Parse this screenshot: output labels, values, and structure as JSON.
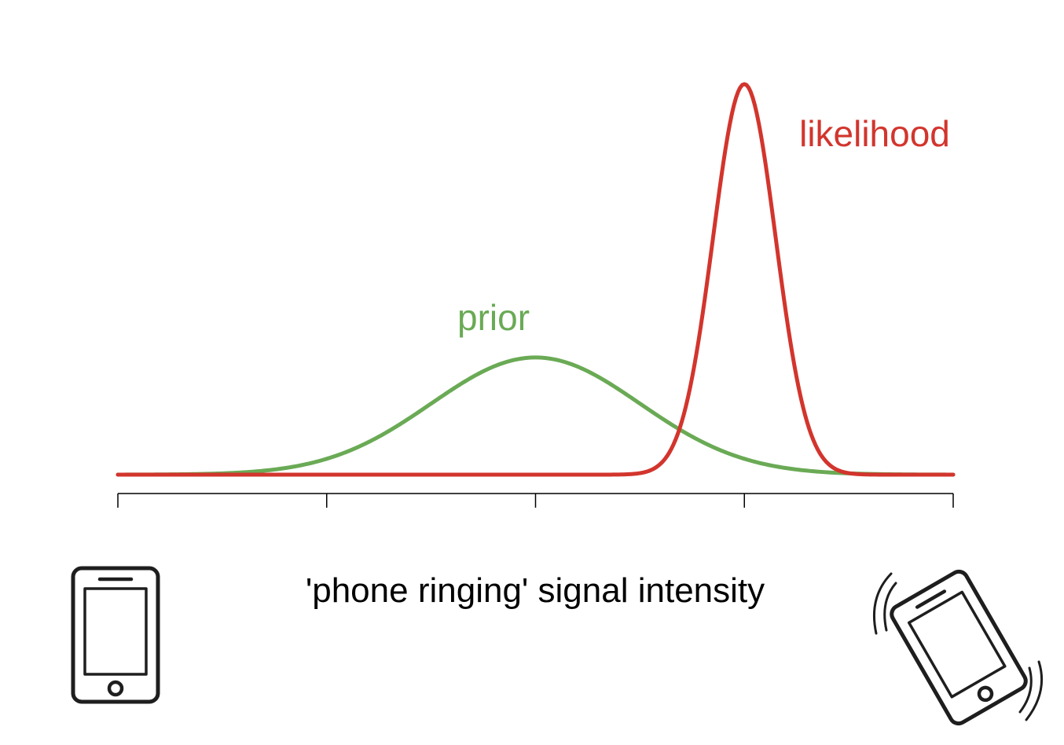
{
  "chart_data": {
    "type": "line",
    "title": "",
    "xlabel": "'phone ringing' signal intensity",
    "ylabel": "",
    "xlim": [
      0,
      4
    ],
    "x_ticks": [
      0,
      1,
      2,
      3,
      4
    ],
    "tick_labels_shown": false,
    "y_axis_shown": false,
    "grid": false,
    "series": [
      {
        "name": "prior",
        "color": "#6aaa55",
        "distribution": "gaussian",
        "mean": 2.0,
        "sd": 0.5,
        "peak": 0.3
      },
      {
        "name": "likelihood",
        "color": "#d2352d",
        "distribution": "gaussian",
        "mean": 3.0,
        "sd": 0.15,
        "peak": 1.0
      }
    ],
    "x_axis_icons": {
      "left": "phone-idle-icon",
      "right": "phone-ringing-icon"
    }
  }
}
